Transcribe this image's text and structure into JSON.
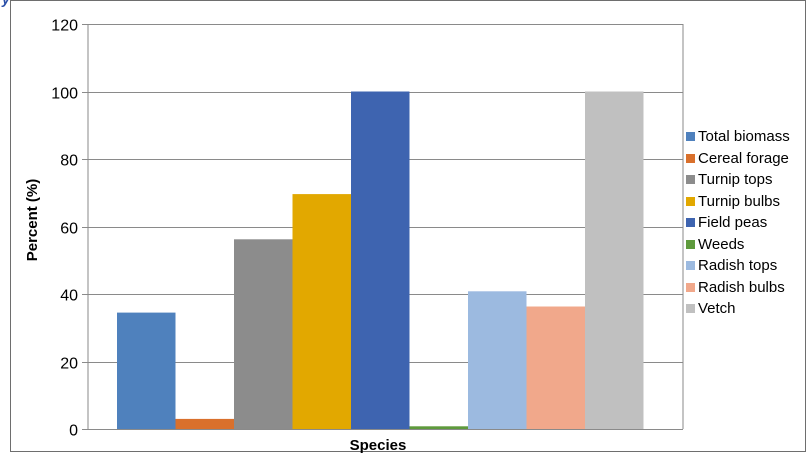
{
  "chart_data": {
    "type": "bar",
    "title": "",
    "xlabel": "Species",
    "ylabel": "Percent (%)",
    "ylim": [
      0,
      120
    ],
    "yticks": [
      0,
      20,
      40,
      60,
      80,
      100,
      120
    ],
    "grid": {
      "horizontal": true,
      "vertical": true
    },
    "legend_position": "right",
    "series": [
      {
        "name": "Total biomass",
        "value": 34.5,
        "color": "#4f81bd"
      },
      {
        "name": "Cereal forage",
        "value": 3.0,
        "color": "#d9702c"
      },
      {
        "name": "Turnip tops",
        "value": 56.2,
        "color": "#8c8c8c"
      },
      {
        "name": "Turnip bulbs",
        "value": 69.6,
        "color": "#e2a800"
      },
      {
        "name": "Field peas",
        "value": 100.0,
        "color": "#3e64b0"
      },
      {
        "name": "Weeds",
        "value": 0.8,
        "color": "#5e9a3c"
      },
      {
        "name": "Radish tops",
        "value": 40.8,
        "color": "#9cbae0"
      },
      {
        "name": "Radish bulbs",
        "value": 36.3,
        "color": "#f1a88b"
      },
      {
        "name": "Vetch",
        "value": 100.0,
        "color": "#c0c0c0"
      }
    ]
  }
}
